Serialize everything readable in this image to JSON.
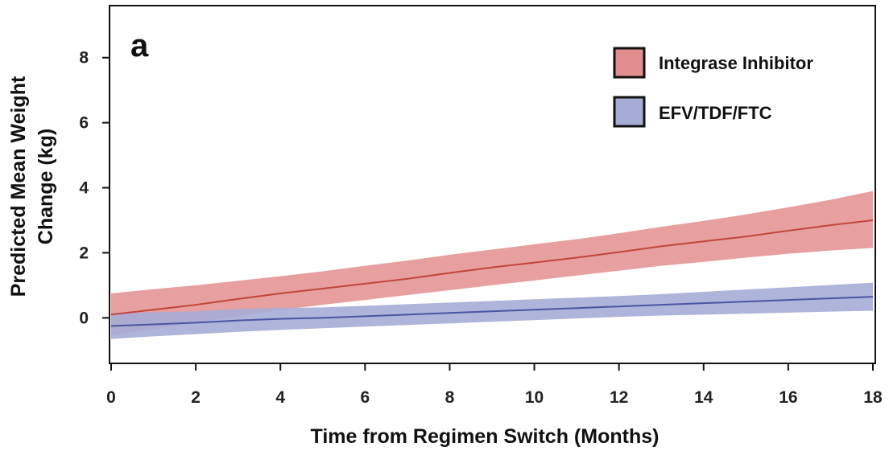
{
  "chart_data": {
    "type": "line",
    "panel_label": "a",
    "xlabel": "Time from Regimen Switch (Months)",
    "ylabel_lines": [
      "Predicted Mean Weight",
      "Change (kg)"
    ],
    "xlim": [
      0,
      18
    ],
    "ylim": [
      -1.4,
      9.6
    ],
    "xticks": [
      0,
      2,
      4,
      6,
      8,
      10,
      12,
      14,
      16,
      18
    ],
    "yticks": [
      0,
      2,
      4,
      6,
      8
    ],
    "grid": false,
    "legend_position": "top-right",
    "x": [
      0,
      1,
      2,
      3,
      4,
      5,
      6,
      7,
      8,
      9,
      10,
      11,
      12,
      13,
      14,
      15,
      16,
      17,
      18
    ],
    "series": [
      {
        "name": "Integrase Inhibitor",
        "line_color": "#c0453a",
        "band_color": "#e38e8e",
        "values": [
          0.1,
          0.25,
          0.4,
          0.58,
          0.75,
          0.9,
          1.05,
          1.2,
          1.38,
          1.55,
          1.7,
          1.85,
          2.02,
          2.2,
          2.35,
          2.5,
          2.68,
          2.85,
          3.0
        ],
        "lower": [
          -0.55,
          -0.35,
          -0.15,
          0.05,
          0.25,
          0.4,
          0.55,
          0.7,
          0.85,
          1.0,
          1.15,
          1.3,
          1.45,
          1.6,
          1.72,
          1.85,
          1.97,
          2.07,
          2.15
        ],
        "upper": [
          0.75,
          0.88,
          1.0,
          1.14,
          1.28,
          1.43,
          1.6,
          1.76,
          1.94,
          2.1,
          2.26,
          2.42,
          2.6,
          2.8,
          2.98,
          3.18,
          3.4,
          3.63,
          3.9
        ]
      },
      {
        "name": "EFV/TDF/FTC",
        "line_color": "#4a55a2",
        "band_color": "#a6acd6",
        "values": [
          -0.25,
          -0.2,
          -0.15,
          -0.08,
          -0.03,
          0.0,
          0.05,
          0.1,
          0.15,
          0.2,
          0.25,
          0.3,
          0.35,
          0.4,
          0.45,
          0.5,
          0.55,
          0.6,
          0.65
        ],
        "lower": [
          -0.65,
          -0.57,
          -0.5,
          -0.43,
          -0.37,
          -0.32,
          -0.27,
          -0.22,
          -0.17,
          -0.12,
          -0.07,
          -0.02,
          0.03,
          0.07,
          0.1,
          0.13,
          0.16,
          0.19,
          0.22
        ],
        "upper": [
          0.15,
          0.17,
          0.2,
          0.27,
          0.31,
          0.32,
          0.37,
          0.42,
          0.47,
          0.52,
          0.57,
          0.62,
          0.67,
          0.73,
          0.8,
          0.87,
          0.94,
          1.01,
          1.08
        ]
      }
    ]
  }
}
